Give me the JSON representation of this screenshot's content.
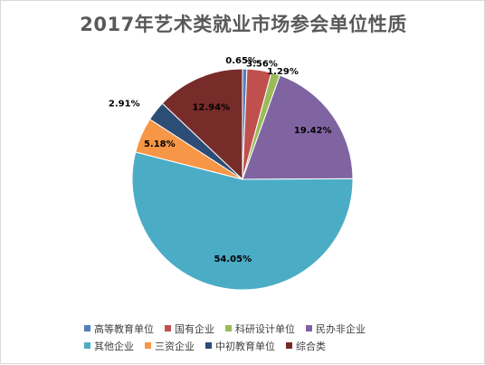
{
  "chart_data": {
    "type": "pie",
    "title": "2017年艺术类就业市场参会单位性质",
    "categories": [
      "高等教育单位",
      "国有企业",
      "科研设计单位",
      "民办非企业",
      "其他企业",
      "三资企业",
      "中初教育单位",
      "综合类"
    ],
    "values": [
      0.65,
      3.56,
      1.29,
      19.42,
      54.05,
      5.18,
      2.91,
      12.94
    ],
    "labels": [
      "0.65%",
      "3.56%",
      "1.29%",
      "19.42%",
      "54.05%",
      "5.18%",
      "2.91%",
      "12.94%"
    ],
    "colors": [
      "#4f81bd",
      "#c0504d",
      "#9bbb59",
      "#8064a2",
      "#4bacc6",
      "#f79646",
      "#2c4d75",
      "#772c2a"
    ],
    "legend_position": "bottom"
  }
}
